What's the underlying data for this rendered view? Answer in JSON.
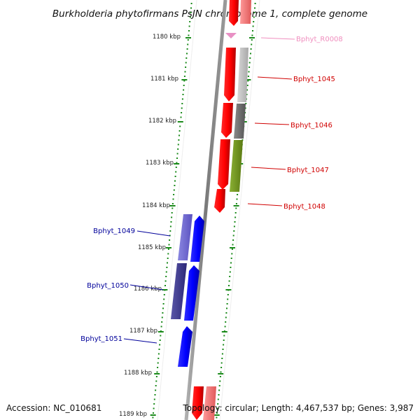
{
  "title": "Burkholderia phytofirmans PsJN chromosome 1, complete genome",
  "footer": {
    "accession": "Accession: NC_010681",
    "summary": "Topology: circular; Length: 4,467,537 bp; Genes: 3,987"
  },
  "axis_labels": [
    "1180 kbp",
    "1181 kbp",
    "1182 kbp",
    "1183 kbp",
    "1184 kbp",
    "1185 kbp",
    "1186 kbp",
    "1187 kbp",
    "1188 kbp",
    "1189 kbp"
  ],
  "genes": [
    {
      "label": "Bphyt_R0008",
      "color": "#f08fbf"
    },
    {
      "label": "Bphyt_1045",
      "color": "#d00000"
    },
    {
      "label": "Bphyt_1046",
      "color": "#d00000"
    },
    {
      "label": "Bphyt_1047",
      "color": "#d00000"
    },
    {
      "label": "Bphyt_1048",
      "color": "#d00000"
    },
    {
      "label": "Bphyt_1049",
      "color": "#00009a"
    },
    {
      "label": "Bphyt_1050",
      "color": "#00009a"
    },
    {
      "label": "Bphyt_1051",
      "color": "#00009a"
    }
  ],
  "colors": {
    "forward_strand": "#ff0000",
    "reverse_strand": "#0000ff",
    "backbone": "#888888",
    "ruler": "#1a8a1a"
  }
}
